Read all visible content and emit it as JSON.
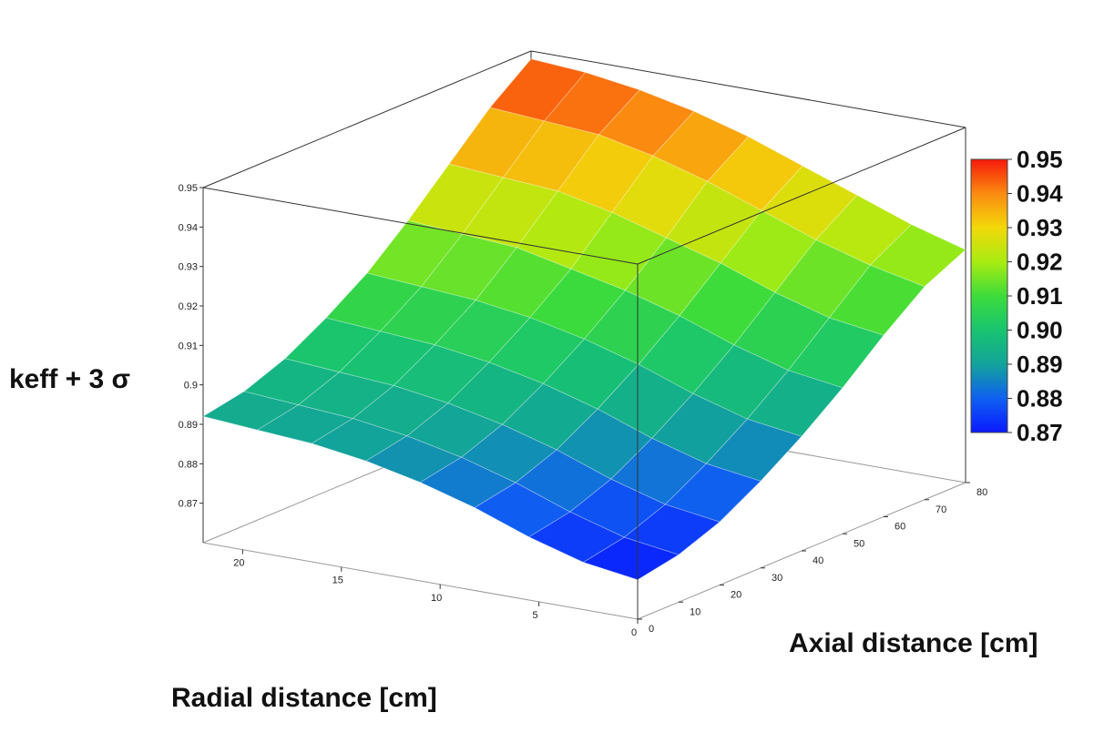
{
  "chart_data": {
    "type": "surface",
    "zlabel": "keff + 3 σ",
    "xlabel": "Radial distance [cm]",
    "ylabel": "Axial distance [cm]",
    "x_range": [
      0,
      22
    ],
    "y_range": [
      0,
      80
    ],
    "z_range": [
      0.86,
      0.95
    ],
    "x_ticks": [
      "0",
      "5",
      "10",
      "15",
      "20"
    ],
    "y_ticks": [
      "0",
      "10",
      "20",
      "30",
      "40",
      "50",
      "60",
      "70",
      "80"
    ],
    "z_ticks": [
      "0.87",
      "0.88",
      "0.89",
      "0.9",
      "0.91",
      "0.92",
      "0.93",
      "0.94",
      "0.95"
    ],
    "colorbar": {
      "min": 0.87,
      "max": 0.95,
      "ticks": [
        "0.87",
        "0.88",
        "0.89",
        "0.90",
        "0.91",
        "0.92",
        "0.93",
        "0.94",
        "0.95"
      ]
    },
    "surface": {
      "x": [
        0,
        2.75,
        5.5,
        8.25,
        11,
        13.75,
        16.5,
        19.25,
        22
      ],
      "y": [
        0,
        10,
        20,
        30,
        40,
        50,
        60,
        70,
        80
      ],
      "z": [
        [
          0.87,
          0.872,
          0.876,
          0.882,
          0.889,
          0.897,
          0.906,
          0.914,
          0.919
        ],
        [
          0.872,
          0.874,
          0.878,
          0.884,
          0.891,
          0.899,
          0.908,
          0.917,
          0.923
        ],
        [
          0.876,
          0.878,
          0.882,
          0.888,
          0.895,
          0.903,
          0.912,
          0.921,
          0.928
        ],
        [
          0.881,
          0.883,
          0.887,
          0.893,
          0.9,
          0.908,
          0.917,
          0.926,
          0.933
        ],
        [
          0.885,
          0.887,
          0.891,
          0.897,
          0.904,
          0.912,
          0.921,
          0.931,
          0.938
        ],
        [
          0.888,
          0.89,
          0.894,
          0.9,
          0.907,
          0.915,
          0.925,
          0.935,
          0.942
        ],
        [
          0.89,
          0.892,
          0.896,
          0.902,
          0.909,
          0.918,
          0.928,
          0.938,
          0.945
        ],
        [
          0.891,
          0.893,
          0.897,
          0.903,
          0.91,
          0.919,
          0.929,
          0.939,
          0.947
        ],
        [
          0.892,
          0.894,
          0.898,
          0.904,
          0.911,
          0.92,
          0.93,
          0.94,
          0.948
        ]
      ]
    }
  }
}
